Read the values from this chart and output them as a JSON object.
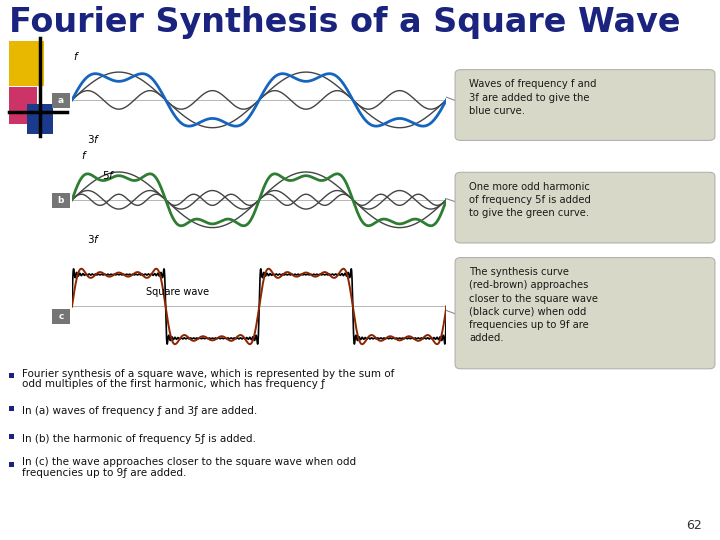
{
  "title": "Fourier Synthesis of a Square Wave",
  "title_color": "#1a237e",
  "title_fontsize": 24,
  "background_color": "#ffffff",
  "bullet_color": "#1a237e",
  "annotation_texts_a": "Waves of frequency f and\n3f are added to give the\nblue curve.",
  "annotation_texts_b": "One more odd harmonic\nof frequency 5f is added\nto give the green curve.",
  "annotation_texts_c": "The synthesis curve\n(red-brown) approaches\ncloser to the square wave\n(black curve) when odd\nfrequencies up to 9f are\nadded.",
  "color_a": "#1565c0",
  "color_b": "#2e7d32",
  "color_c": "#8b2500",
  "color_component": "#444444",
  "color_square": "#000000",
  "panel_label_bg": "#757575",
  "annotation_bg": "#d8d8c8",
  "annotation_border": "#aaaaaa",
  "connector_color": "#888888",
  "page_number": "62",
  "deco_yellow": "#e8b800",
  "deco_pink": "#cc3366",
  "deco_blue": "#1a3a8c"
}
